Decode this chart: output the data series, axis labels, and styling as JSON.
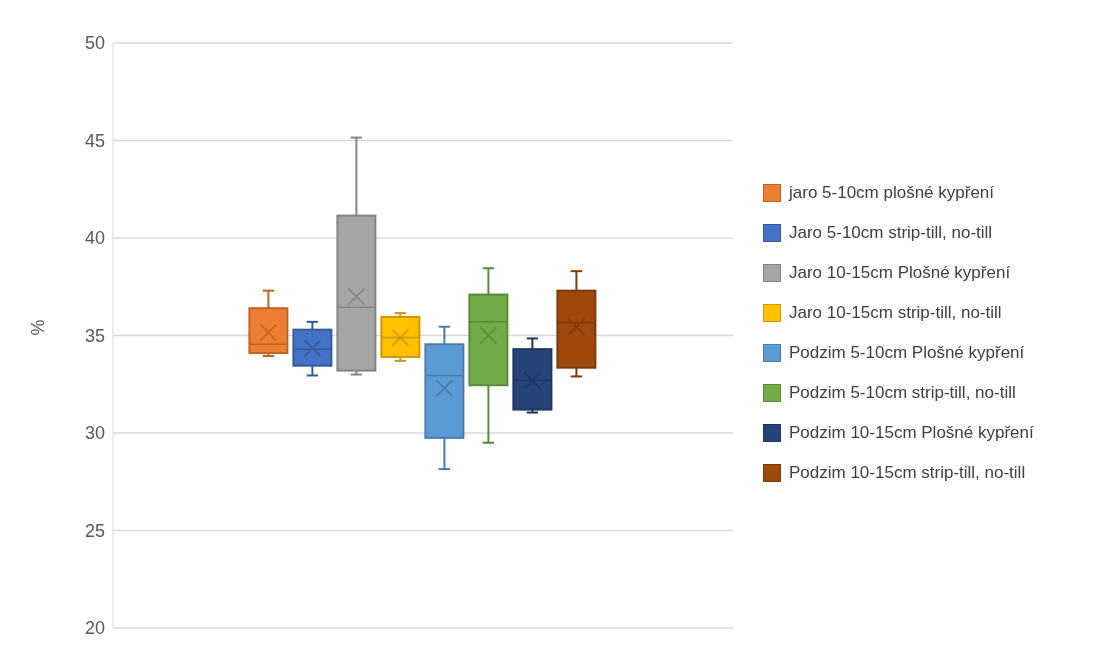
{
  "chart_data": {
    "type": "box",
    "ylabel": "%",
    "categories": [
      null
    ],
    "ylim": [
      20,
      50
    ],
    "yticks": [
      20,
      25,
      30,
      35,
      40,
      45,
      50
    ],
    "grid": "y",
    "legend": "right",
    "series": [
      {
        "name": "jaro 5-10cm plošné kypření",
        "color": "#ed7d31",
        "boxes": [
          {
            "low": 33.95,
            "q1": 34.1,
            "median": 34.55,
            "q3": 36.4,
            "high": 37.3,
            "mean": 35.15
          }
        ]
      },
      {
        "name": "Jaro 5-10cm strip-till, no-till",
        "color": "#4472c4",
        "boxes": [
          {
            "low": 32.95,
            "q1": 33.45,
            "median": 34.3,
            "q3": 35.3,
            "high": 35.7,
            "mean": 34.35
          }
        ]
      },
      {
        "name": "Jaro 10-15cm Plošné kypření",
        "color": "#a5a5a5",
        "boxes": [
          {
            "low": 33.0,
            "q1": 33.2,
            "median": 36.45,
            "q3": 41.15,
            "high": 45.15,
            "mean": 37.0
          }
        ]
      },
      {
        "name": "Jaro 10-15cm strip-till, no-till",
        "color": "#ffc000",
        "boxes": [
          {
            "low": 33.7,
            "q1": 33.9,
            "median": 34.9,
            "q3": 35.95,
            "high": 36.15,
            "mean": 34.9
          }
        ]
      },
      {
        "name": "Podzim 5-10cm Plošné kypření",
        "color": "#5b9bd5",
        "boxes": [
          {
            "low": 28.15,
            "q1": 29.75,
            "median": 32.95,
            "q3": 34.55,
            "high": 35.45,
            "mean": 32.3
          }
        ]
      },
      {
        "name": "Podzim 5-10cm strip-till, no-till",
        "color": "#70ad47",
        "boxes": [
          {
            "low": 29.5,
            "q1": 32.45,
            "median": 35.7,
            "q3": 37.1,
            "high": 38.45,
            "mean": 35.0
          }
        ]
      },
      {
        "name": "Podzim 10-15cm Plošné kypření",
        "color": "#264478",
        "boxes": [
          {
            "low": 31.05,
            "q1": 31.2,
            "median": 32.7,
            "q3": 34.3,
            "high": 34.85,
            "mean": 32.7
          }
        ]
      },
      {
        "name": "Podzim 10-15cm strip-till, no-till",
        "color": "#9e480e",
        "boxes": [
          {
            "low": 32.9,
            "q1": 33.35,
            "median": 35.65,
            "q3": 37.3,
            "high": 38.3,
            "mean": 35.45
          }
        ]
      }
    ]
  }
}
